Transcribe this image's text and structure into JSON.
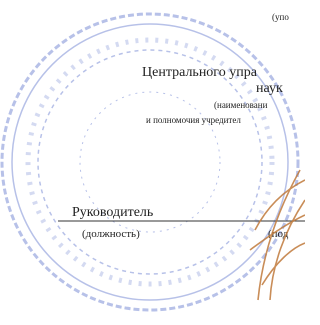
{
  "document": {
    "header": {
      "caption_top": "(упо",
      "org_line": "Центрального упра",
      "org_line2": "наук",
      "caption_name": "(наименовани",
      "caption_powers": "и полномочия учредител"
    },
    "signature": {
      "position": "Руководитель",
      "position_caption": "(должность)",
      "signature_caption": "(под"
    }
  }
}
